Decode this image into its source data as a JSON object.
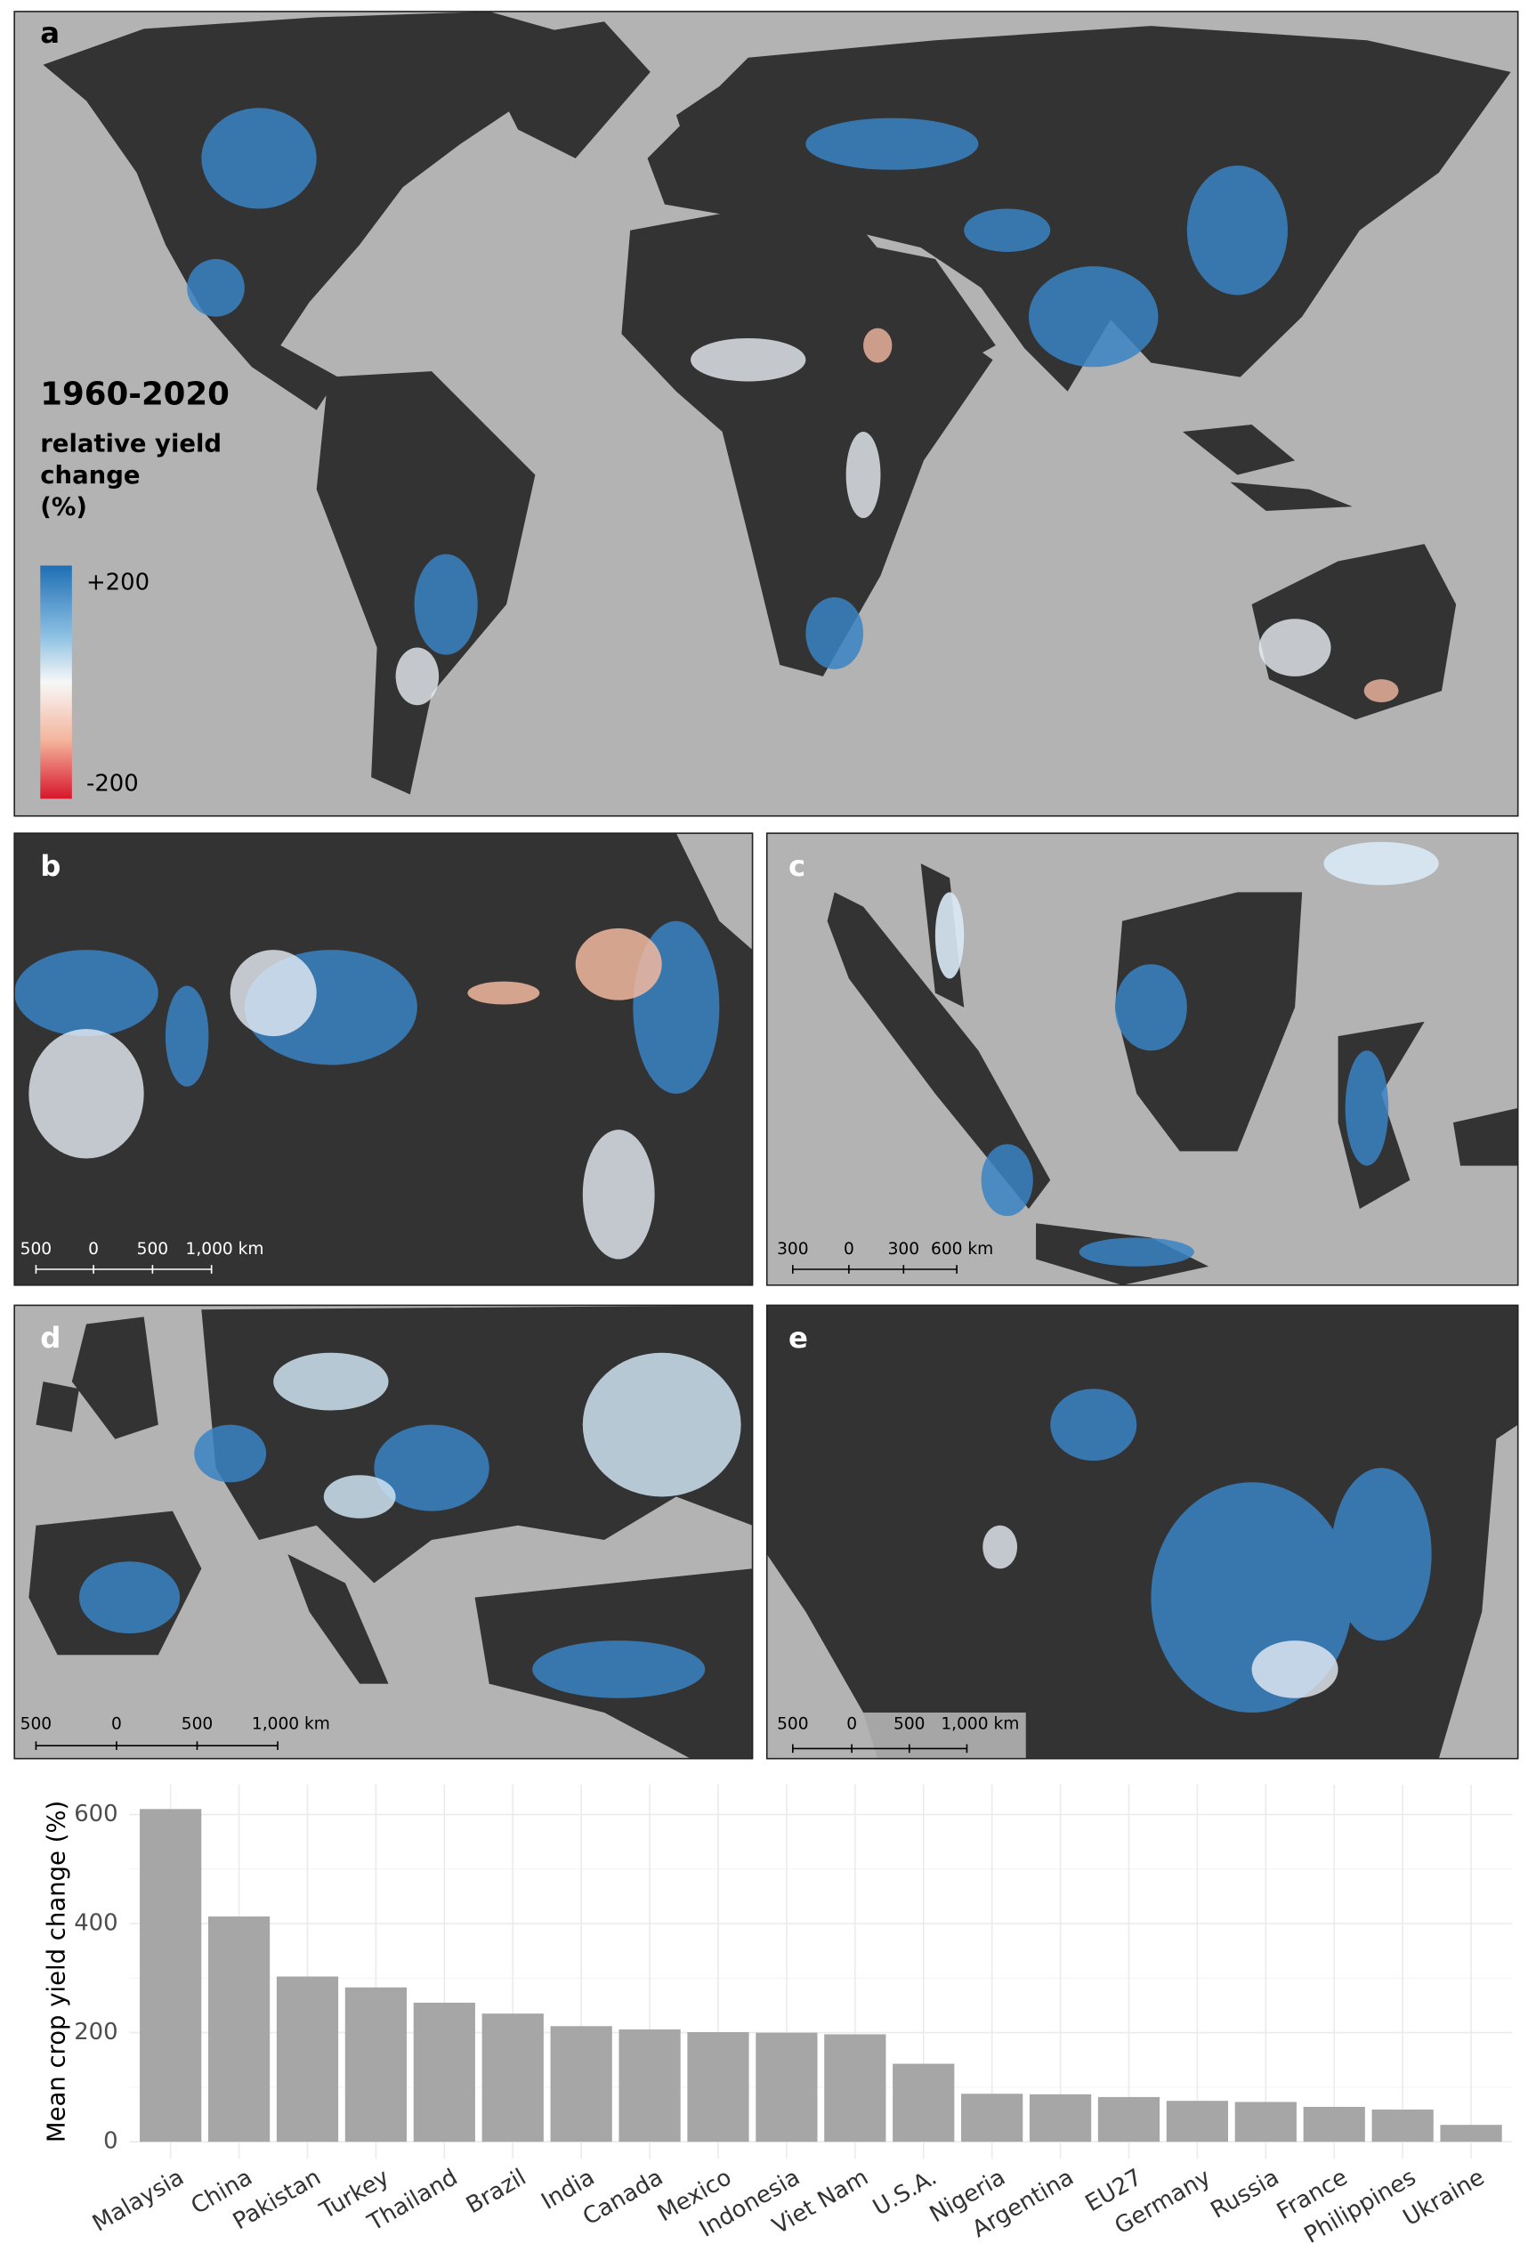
{
  "maps": {
    "legend": {
      "title": "1960-2020",
      "lines": [
        "relative yield",
        "change",
        "(%)"
      ],
      "max_label": "+200",
      "min_label": "-200"
    },
    "panels": [
      {
        "letter": "a"
      },
      {
        "letter": "b",
        "scale_labels": [
          "500",
          "0",
          "500",
          "1,000 km"
        ]
      },
      {
        "letter": "c",
        "scale_labels": [
          "300",
          "0",
          "300",
          "600 km"
        ]
      },
      {
        "letter": "d",
        "scale_labels": [
          "500",
          "0",
          "500",
          "1,000 km"
        ]
      },
      {
        "letter": "e",
        "scale_labels": [
          "500",
          "0",
          "500",
          "1,000 km"
        ]
      }
    ]
  },
  "chart_data": {
    "type": "bar",
    "y_label": "Mean crop yield change (%)",
    "categories": [
      "Malaysia",
      "China",
      "Pakistan",
      "Turkey",
      "Thailand",
      "Brazil",
      "India",
      "Canada",
      "Mexico",
      "Indonesia",
      "Viet Nam",
      "U.S.A.",
      "Nigeria",
      "Argentina",
      "EU27",
      "Germany",
      "Russia",
      "France",
      "Philippines",
      "Ukraine"
    ],
    "values": [
      610,
      413,
      303,
      283,
      255,
      235,
      212,
      206,
      201,
      200,
      197,
      143,
      88,
      87,
      82,
      75,
      73,
      64,
      59,
      31
    ],
    "color": "#a6a6a6",
    "ylim": [
      -31,
      655
    ],
    "yticks": [
      0,
      200,
      400,
      600
    ],
    "yminor": [
      100,
      300,
      500
    ],
    "grid": true
  }
}
